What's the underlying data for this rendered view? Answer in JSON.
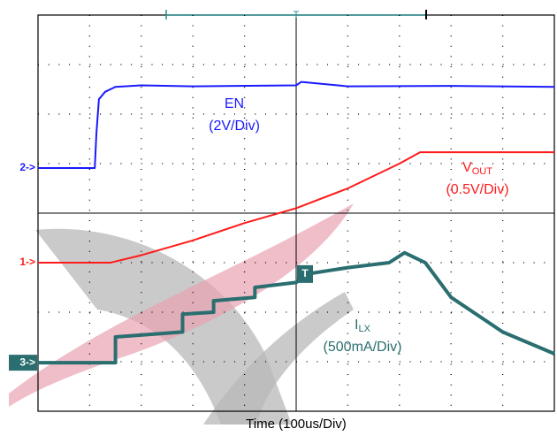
{
  "chart_data": {
    "type": "line",
    "xlabel": "Time (100us/Div)",
    "xlim": [
      0,
      10
    ],
    "ylim": [
      0,
      8
    ],
    "grid": true,
    "series": [
      {
        "color": "#1a1aff",
        "x": [
          0,
          1.1,
          1.13,
          1.18,
          1.3,
          1.5,
          2,
          3,
          5,
          5.1,
          6,
          8,
          10
        ],
        "values": [
          4.91,
          4.91,
          5.6,
          6.3,
          6.45,
          6.55,
          6.58,
          6.56,
          6.58,
          6.65,
          6.56,
          6.57,
          6.55
        ]
      },
      {
        "color": "#ff1a1a",
        "x": [
          0,
          1.4,
          2,
          3,
          4,
          5,
          6,
          7,
          7.4,
          8,
          10
        ],
        "values": [
          3.0,
          3.0,
          3.15,
          3.45,
          3.8,
          4.1,
          4.5,
          5.0,
          5.23,
          5.23,
          5.23
        ]
      },
      {
        "color": "#2a6e70",
        "x": [
          0,
          1.5,
          1.5,
          2.8,
          2.8,
          3.4,
          3.4,
          4.2,
          4.2,
          5,
          5.2,
          6,
          6.8,
          7.1,
          7.5,
          8,
          9,
          10
        ],
        "values": [
          0.98,
          0.98,
          1.5,
          1.6,
          1.96,
          2.0,
          2.23,
          2.3,
          2.5,
          2.6,
          2.77,
          2.9,
          3.0,
          3.2,
          3.0,
          2.3,
          1.6,
          1.16
        ]
      }
    ],
    "channel_markers": [
      {
        "label": "2->",
        "level": 4.91
      },
      {
        "label": "1->",
        "level": 3.0
      },
      {
        "label": "3->",
        "level": 0.98
      }
    ],
    "trigger": {
      "label": "T",
      "x": 5,
      "level": 2.77
    },
    "annotations": [
      {
        "text": "EN",
        "scale": "(2V/Div)"
      },
      {
        "text": "V",
        "sub": "OUT",
        "scale": "(0.5V/Div)"
      },
      {
        "text": "I",
        "sub": "LX",
        "scale": "(500mA/Div)"
      }
    ]
  }
}
